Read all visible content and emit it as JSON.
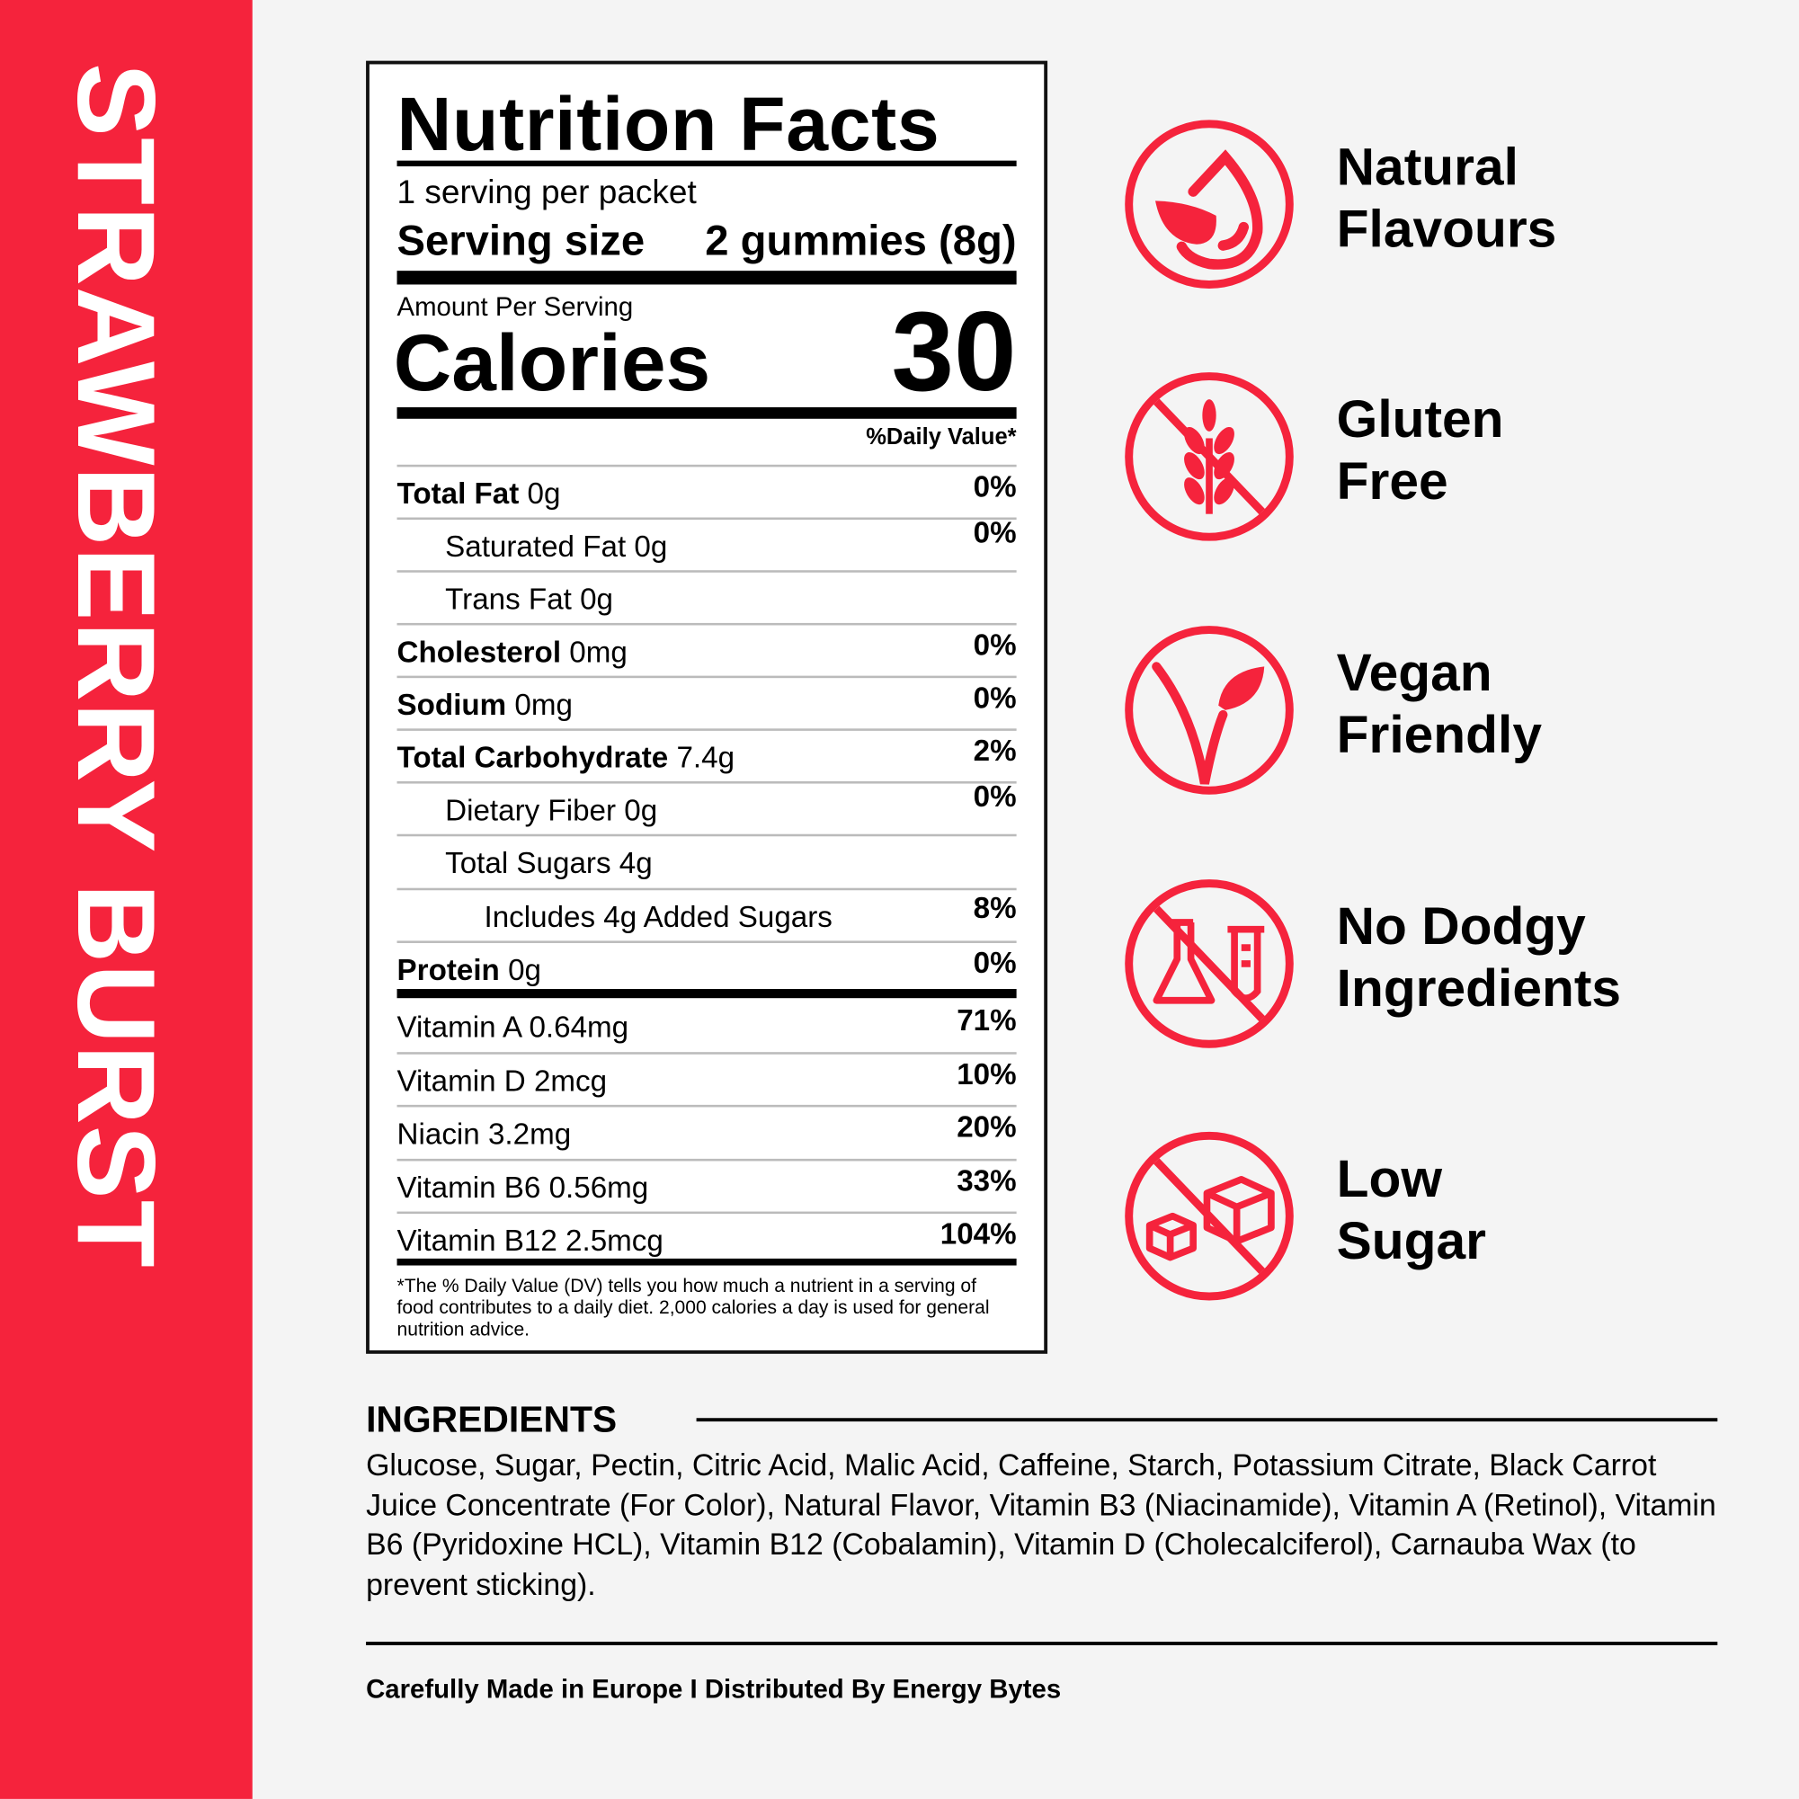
{
  "product_name": "STRAWBERRY BURST",
  "nutrition": {
    "title": "Nutrition Facts",
    "servings": "1 serving per packet",
    "serving_size_label": "Serving size",
    "serving_size_value": "2 gummies (8g)",
    "amount_per_serving": "Amount Per Serving",
    "calories_label": "Calories",
    "calories_value": "30",
    "dv_header": "%Daily Value*",
    "rows": [
      {
        "bold": "Total Fat",
        "amount": "0g",
        "dv": "0%"
      },
      {
        "label": "Saturated Fat 0g",
        "dv": "0%"
      },
      {
        "label": "Trans Fat 0g",
        "dv": ""
      },
      {
        "bold": "Cholesterol",
        "amount": "0mg",
        "dv": "0%"
      },
      {
        "bold": "Sodium",
        "amount": "0mg",
        "dv": "0%"
      },
      {
        "bold": "Total Carbohydrate",
        "amount": "7.4g",
        "dv": "2%"
      },
      {
        "label": "Dietary Fiber 0g",
        "dv": "0%"
      },
      {
        "label": "Total Sugars 4g",
        "dv": ""
      },
      {
        "label": "Includes 4g Added Sugars",
        "dv": "8%"
      },
      {
        "bold": "Protein",
        "amount": "0g",
        "dv": "0%"
      }
    ],
    "vitamins": [
      {
        "label": "Vitamin A 0.64mg",
        "dv": "71%"
      },
      {
        "label": "Vitamin D 2mcg",
        "dv": "10%"
      },
      {
        "label": "Niacin 3.2mg",
        "dv": "20%"
      },
      {
        "label": "Vitamin B6 0.56mg",
        "dv": "33%"
      },
      {
        "label": "Vitamin B12 2.5mcg",
        "dv": "104%"
      }
    ],
    "footnote": "*The % Daily Value (DV) tells you how much a nutrient in a serving of food contributes to a daily diet. 2,000 calories a day is used for general nutrition advice."
  },
  "features": [
    {
      "line1": "Natural",
      "line2": "Flavours",
      "icon": "drop-leaf-icon"
    },
    {
      "line1": "Gluten",
      "line2": "Free",
      "icon": "no-wheat-icon"
    },
    {
      "line1": "Vegan",
      "line2": "Friendly",
      "icon": "vegan-leaf-icon"
    },
    {
      "line1": "No Dodgy",
      "line2": "Ingredients",
      "icon": "no-chemicals-icon"
    },
    {
      "line1": "Low",
      "line2": "Sugar",
      "icon": "no-sugar-cubes-icon"
    }
  ],
  "ingredients": {
    "heading": "INGREDIENTS",
    "text": "Glucose, Sugar, Pectin, Citric Acid, Malic Acid, Caffeine, Starch, Potassium Citrate, Black Carrot Juice Concentrate (For Color), Natural Flavor, Vitamin B3 (Niacinamide), Vitamin A (Retinol), Vitamin B6 (Pyridoxine HCL), Vitamin B12 (Cobalamin), Vitamin D (Cholecalciferol), Carnauba Wax (to prevent sticking)."
  },
  "footer": "Carefully Made in Europe I Distributed By Energy Bytes",
  "colors": {
    "accent": "#f5233c",
    "background": "#f4f4f4"
  }
}
